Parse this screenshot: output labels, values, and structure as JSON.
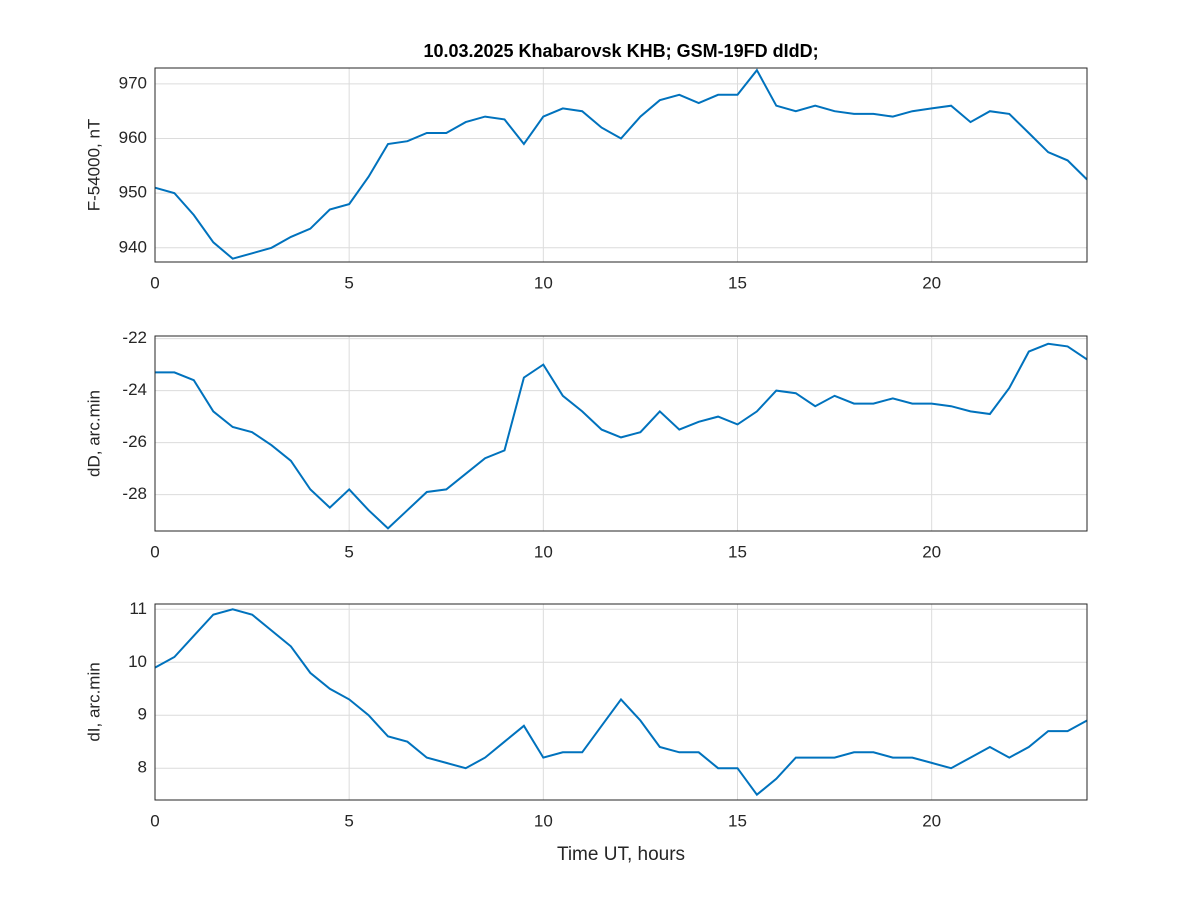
{
  "chart_data": [
    {
      "type": "line",
      "title": "10.03.2025  Khabarovsk KHB; GSM-19FD dIdD;",
      "y_label": "F-54000, nT",
      "x": [
        0,
        0.5,
        1,
        1.5,
        2,
        2.5,
        3,
        3.5,
        4,
        4.5,
        5,
        5.5,
        6,
        6.5,
        7,
        7.5,
        8,
        8.5,
        9,
        9.5,
        10,
        10.5,
        11,
        11.5,
        12,
        12.5,
        13,
        13.5,
        14,
        14.5,
        15,
        15.5,
        16,
        16.5,
        17,
        17.5,
        18,
        18.5,
        19,
        19.5,
        20,
        20.5,
        21,
        21.5,
        22,
        22.5,
        23,
        23.5,
        24
      ],
      "series": [
        {
          "color": "#0072bd",
          "values": [
            951,
            950,
            946,
            941,
            938,
            939,
            940,
            942,
            943.5,
            947,
            948,
            953,
            959,
            959.5,
            961,
            961,
            963,
            964,
            963.5,
            959,
            964,
            965.5,
            965,
            962,
            960,
            964,
            967,
            968,
            966.5,
            968,
            968,
            972.5,
            966,
            965,
            966,
            965,
            964.5,
            964.5,
            964,
            965,
            965.5,
            966,
            963,
            965,
            964.5,
            961,
            957.5,
            956,
            952.5
          ]
        }
      ],
      "xlim": [
        0,
        24
      ],
      "xticks": [
        0,
        5,
        10,
        15,
        20
      ],
      "ylim": [
        937.4,
        972.9
      ],
      "yticks": [
        940,
        950,
        960,
        970
      ],
      "grid": true
    },
    {
      "type": "line",
      "y_label": "dD, arc.min",
      "x": [
        0,
        0.5,
        1,
        1.5,
        2,
        2.5,
        3,
        3.5,
        4,
        4.5,
        5,
        5.5,
        6,
        6.5,
        7,
        7.5,
        8,
        8.5,
        9,
        9.5,
        10,
        10.5,
        11,
        11.5,
        12,
        12.5,
        13,
        13.5,
        14,
        14.5,
        15,
        15.5,
        16,
        16.5,
        17,
        17.5,
        18,
        18.5,
        19,
        19.5,
        20,
        20.5,
        21,
        21.5,
        22,
        22.5,
        23,
        23.5,
        24
      ],
      "series": [
        {
          "color": "#0072bd",
          "values": [
            -23.3,
            -23.3,
            -23.6,
            -24.8,
            -25.4,
            -25.6,
            -26.1,
            -26.7,
            -27.8,
            -28.5,
            -27.8,
            -28.6,
            -29.3,
            -28.6,
            -27.9,
            -27.8,
            -27.2,
            -26.6,
            -26.3,
            -23.5,
            -23.0,
            -24.2,
            -24.8,
            -25.5,
            -25.8,
            -25.6,
            -24.8,
            -25.5,
            -25.2,
            -25.0,
            -25.3,
            -24.8,
            -24.0,
            -24.1,
            -24.6,
            -24.2,
            -24.5,
            -24.5,
            -24.3,
            -24.5,
            -24.5,
            -24.6,
            -24.8,
            -24.9,
            -23.9,
            -22.5,
            -22.2,
            -22.3,
            -22.8
          ]
        }
      ],
      "xlim": [
        0,
        24
      ],
      "xticks": [
        0,
        5,
        10,
        15,
        20
      ],
      "ylim": [
        -29.4,
        -21.9
      ],
      "yticks": [
        -28,
        -26,
        -24,
        -22
      ],
      "grid": true
    },
    {
      "type": "line",
      "y_label": "dI, arc.min",
      "x_label": "Time UT, hours",
      "x": [
        0,
        0.5,
        1,
        1.5,
        2,
        2.5,
        3,
        3.5,
        4,
        4.5,
        5,
        5.5,
        6,
        6.5,
        7,
        7.5,
        8,
        8.5,
        9,
        9.5,
        10,
        10.5,
        11,
        11.5,
        12,
        12.5,
        13,
        13.5,
        14,
        14.5,
        15,
        15.5,
        16,
        16.5,
        17,
        17.5,
        18,
        18.5,
        19,
        19.5,
        20,
        20.5,
        21,
        21.5,
        22,
        22.5,
        23,
        23.5,
        24
      ],
      "series": [
        {
          "color": "#0072bd",
          "values": [
            9.9,
            10.1,
            10.5,
            10.9,
            11.0,
            10.9,
            10.6,
            10.3,
            9.8,
            9.5,
            9.3,
            9.0,
            8.6,
            8.5,
            8.2,
            8.1,
            8.0,
            8.2,
            8.5,
            8.8,
            8.2,
            8.3,
            8.3,
            8.8,
            9.3,
            8.9,
            8.4,
            8.3,
            8.3,
            8.0,
            8.0,
            7.5,
            7.8,
            8.2,
            8.2,
            8.2,
            8.3,
            8.3,
            8.2,
            8.2,
            8.1,
            8.0,
            8.2,
            8.4,
            8.2,
            8.4,
            8.7,
            8.7,
            8.9
          ]
        }
      ],
      "xlim": [
        0,
        24
      ],
      "xticks": [
        0,
        5,
        10,
        15,
        20
      ],
      "ylim": [
        7.4,
        11.1
      ],
      "yticks": [
        8,
        9,
        10,
        11
      ],
      "grid": true
    }
  ]
}
